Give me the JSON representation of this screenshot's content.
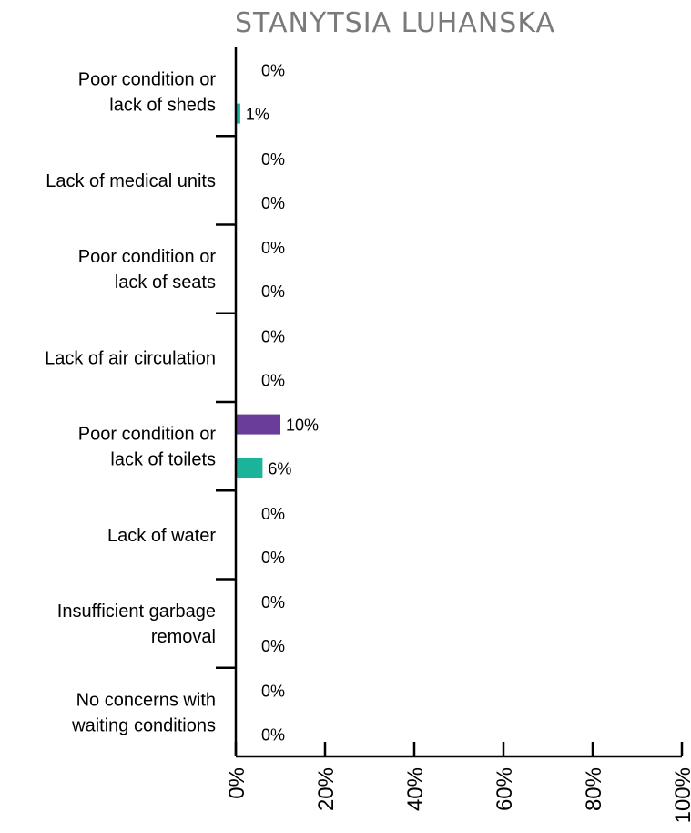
{
  "chart_data": {
    "type": "bar",
    "orientation": "horizontal",
    "title": "STANYTSIA LUHANSKA",
    "categories": [
      "Poor condition or lack of sheds",
      "Lack of medical units",
      "Poor condition or lack of seats",
      "Lack of air circulation",
      "Poor condition or lack of toilets",
      "Lack of water",
      "Insufficient garbage removal",
      "No concerns with waiting conditions"
    ],
    "category_label_lines": [
      [
        "Poor condition or",
        "lack of sheds"
      ],
      [
        "Lack of medical units"
      ],
      [
        "Poor condition or",
        "lack of seats"
      ],
      [
        "Lack of air circulation"
      ],
      [
        "Poor condition or",
        "lack of toilets"
      ],
      [
        "Lack of water"
      ],
      [
        "Insufficient garbage",
        "removal"
      ],
      [
        "No concerns with",
        "waiting conditions"
      ]
    ],
    "series": [
      {
        "color": "#6a3d9a",
        "values": [
          0,
          0,
          0,
          0,
          10,
          0,
          0,
          0
        ],
        "labels": [
          "0%",
          "0%",
          "0%",
          "0%",
          "10%",
          "0%",
          "0%",
          "0%"
        ]
      },
      {
        "color": "#1cb39b",
        "values": [
          1,
          0,
          0,
          0,
          6,
          0,
          0,
          0
        ],
        "labels": [
          "1%",
          "0%",
          "0%",
          "0%",
          "6%",
          "0%",
          "0%",
          "0%"
        ]
      }
    ],
    "xlim": [
      0,
      100
    ],
    "xticks": [
      0,
      20,
      40,
      60,
      80,
      100
    ],
    "xtick_labels": [
      "0%",
      "20%",
      "40%",
      "60%",
      "80%",
      "100%"
    ],
    "grid": false,
    "legend": "none"
  }
}
